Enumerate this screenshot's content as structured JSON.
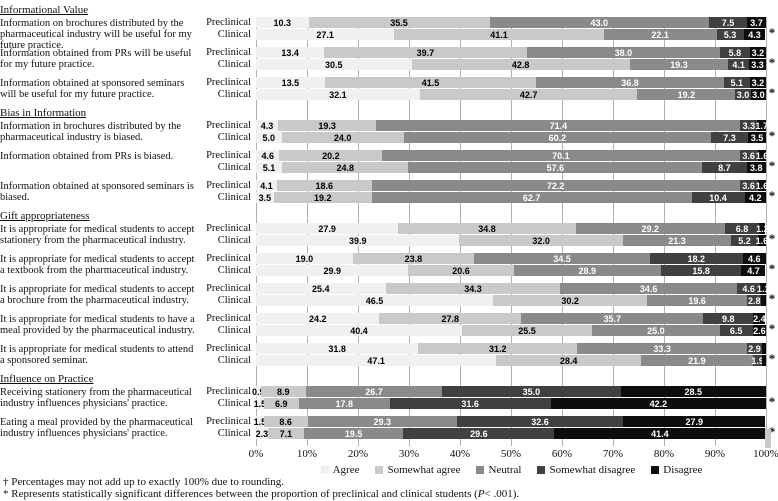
{
  "chart_data": {
    "type": "bar",
    "orientation": "horizontal",
    "stacked": true,
    "unit": "%",
    "xlim": [
      0,
      100
    ],
    "grid": true,
    "legend_position": "bottom",
    "x_ticks": [
      "0%",
      "10%",
      "20%",
      "30%",
      "40%",
      "50%",
      "60%",
      "70%",
      "80%",
      "90%",
      "100%"
    ],
    "series": [
      "Agree",
      "Somewhat agree",
      "Neutral",
      "Somewhat disagree",
      "Disagree"
    ],
    "series_colors": [
      "#f0f0f0",
      "#c9c9c9",
      "#8a8a8a",
      "#404040",
      "#0d0d0d"
    ],
    "series_text_colors": [
      "#000000",
      "#000000",
      "#ffffff",
      "#ffffff",
      "#ffffff"
    ],
    "grid_color": "#b0b0b0",
    "significance_marker": "*",
    "sections": [
      {
        "title": "Informational Value",
        "questions": [
          {
            "text": "Information on brochures distributed by the pharmaceutical industry will be useful for my future practice.",
            "significant": true,
            "rows": [
              {
                "label": "Preclinical",
                "values": [
                  10.3,
                  35.5,
                  43.0,
                  7.5,
                  3.7
                ],
                "labels": [
                  "10.3",
                  "35.5",
                  "43.0",
                  "7.5",
                  "3.7"
                ]
              },
              {
                "label": "Clinical",
                "values": [
                  27.1,
                  41.1,
                  22.1,
                  5.3,
                  4.3
                ],
                "labels": [
                  "27.1",
                  "41.1",
                  "22.1",
                  "5.3",
                  "4.3"
                ]
              }
            ]
          },
          {
            "text": "Information obtained from PRs will be useful for my future practice.",
            "significant": true,
            "rows": [
              {
                "label": "Preclinical",
                "values": [
                  13.4,
                  39.7,
                  38.0,
                  5.8,
                  3.2
                ],
                "labels": [
                  "13.4",
                  "39.7",
                  "38.0",
                  "5.8",
                  "3.2"
                ]
              },
              {
                "label": "Clinical",
                "values": [
                  30.5,
                  42.8,
                  19.3,
                  4.1,
                  3.3
                ],
                "labels": [
                  "30.5",
                  "42.8",
                  "19.3",
                  "4.1",
                  "3.3"
                ]
              }
            ]
          },
          {
            "text": "Information obtained at sponsored seminars will be useful for my future practice.",
            "significant": true,
            "rows": [
              {
                "label": "Preclinical",
                "values": [
                  13.5,
                  41.5,
                  36.8,
                  5.1,
                  3.2
                ],
                "labels": [
                  "13.5",
                  "41.5",
                  "36.8",
                  "5.1",
                  "3.2"
                ]
              },
              {
                "label": "Clinical",
                "values": [
                  32.1,
                  42.7,
                  19.2,
                  3.0,
                  3.0
                ],
                "labels": [
                  "32.1",
                  "42.7",
                  "19.2",
                  "3.0",
                  "3.0"
                ]
              }
            ]
          }
        ]
      },
      {
        "title": "Bias in Information",
        "questions": [
          {
            "text": "Information in brochures distributed by the pharmaceutical industry is biased.",
            "significant": true,
            "rows": [
              {
                "label": "Preclinical",
                "values": [
                  4.3,
                  19.3,
                  71.4,
                  3.3,
                  1.7
                ],
                "labels": [
                  "4.3",
                  "19.3",
                  "71.4",
                  "3.3",
                  "1.7"
                ]
              },
              {
                "label": "Clinical",
                "values": [
                  5.0,
                  24.0,
                  60.2,
                  7.3,
                  3.5
                ],
                "labels": [
                  "5.0",
                  "24.0",
                  "60.2",
                  "7.3",
                  "3.5"
                ]
              }
            ]
          },
          {
            "text": "Information obtained from PRs is biased.",
            "significant": true,
            "rows": [
              {
                "label": "Preclinical",
                "values": [
                  4.6,
                  20.2,
                  70.1,
                  3.6,
                  1.6
                ],
                "labels": [
                  "4.6",
                  "20.2",
                  "70.1",
                  "3.6",
                  "1.6"
                ]
              },
              {
                "label": "Clinical",
                "values": [
                  5.1,
                  24.8,
                  57.6,
                  8.7,
                  3.8
                ],
                "labels": [
                  "5.1",
                  "24.8",
                  "57.6",
                  "8.7",
                  "3.8"
                ]
              }
            ]
          },
          {
            "text": "Information obtained at sponsored seminars is biased.",
            "significant": true,
            "rows": [
              {
                "label": "Preclinical",
                "values": [
                  4.1,
                  18.6,
                  72.2,
                  3.6,
                  1.6
                ],
                "labels": [
                  "4.1",
                  "18.6",
                  "72.2",
                  "3.6",
                  "1.6"
                ]
              },
              {
                "label": "Clinical",
                "values": [
                  3.5,
                  19.2,
                  62.7,
                  10.4,
                  4.2
                ],
                "labels": [
                  "3.5",
                  "19.2",
                  "62.7",
                  "10.4",
                  "4.2"
                ]
              }
            ]
          }
        ]
      },
      {
        "title": "Gift appropriateness",
        "questions": [
          {
            "text": "It is appropriate for medical students to accept stationery from the pharmaceutical industry.",
            "significant": true,
            "rows": [
              {
                "label": "Preclinical",
                "values": [
                  27.9,
                  34.8,
                  29.2,
                  6.8,
                  1.2
                ],
                "labels": [
                  "27.9",
                  "34.8",
                  "29.2",
                  "6.8",
                  "1.2"
                ]
              },
              {
                "label": "Clinical",
                "values": [
                  39.9,
                  32.0,
                  21.3,
                  5.2,
                  1.6
                ],
                "labels": [
                  "39.9",
                  "32.0",
                  "21.3",
                  "5.2",
                  "1.6"
                ]
              }
            ]
          },
          {
            "text": "It is appropriate for medical students to accept a textbook from the pharmaceutical industry.",
            "significant": true,
            "rows": [
              {
                "label": "Preclinical",
                "values": [
                  19.0,
                  23.8,
                  34.5,
                  18.2,
                  4.6
                ],
                "labels": [
                  "19.0",
                  "23.8",
                  "34.5",
                  "18.2",
                  "4.6"
                ]
              },
              {
                "label": "Clinical",
                "values": [
                  29.9,
                  20.6,
                  28.9,
                  15.8,
                  4.7
                ],
                "labels": [
                  "29.9",
                  "20.6",
                  "28.9",
                  "15.8",
                  "4.7"
                ]
              }
            ]
          },
          {
            "text": "It is appropriate for medical students to accept a brochure from the pharmaceutical industry.",
            "significant": true,
            "rows": [
              {
                "label": "Preclinical",
                "values": [
                  25.4,
                  34.3,
                  34.6,
                  4.6,
                  1.1
                ],
                "labels": [
                  "25.4",
                  "34.3",
                  "34.6",
                  "4.6",
                  "1.1"
                ]
              },
              {
                "label": "Clinical",
                "values": [
                  46.5,
                  30.2,
                  19.6,
                  2.8,
                  0.9
                ],
                "labels": [
                  "46.5",
                  "30.2",
                  "19.6",
                  "2.8",
                  ""
                ]
              }
            ]
          },
          {
            "text": "It is appropriate for medical students to have a meal provided by the pharmaceutical industry.",
            "significant": true,
            "rows": [
              {
                "label": "Preclinical",
                "values": [
                  24.2,
                  27.8,
                  35.7,
                  9.8,
                  2.4
                ],
                "labels": [
                  "24.2",
                  "27.8",
                  "35.7",
                  "9.8",
                  "2.4"
                ]
              },
              {
                "label": "Clinical",
                "values": [
                  40.4,
                  25.5,
                  25.0,
                  6.5,
                  2.6
                ],
                "labels": [
                  "40.4",
                  "25.5",
                  "25.0",
                  "6.5",
                  "2.6"
                ]
              }
            ]
          },
          {
            "text": "It is appropriate for medical students to attend a sponsored seminar.",
            "significant": true,
            "rows": [
              {
                "label": "Preclinical",
                "values": [
                  31.8,
                  31.2,
                  33.3,
                  2.9,
                  0.8
                ],
                "labels": [
                  "31.8",
                  "31.2",
                  "33.3",
                  "2.9",
                  ""
                ]
              },
              {
                "label": "Clinical",
                "values": [
                  47.1,
                  28.4,
                  21.9,
                  1.9,
                  0.7
                ],
                "labels": [
                  "47.1",
                  "28.4",
                  "21.9",
                  "1.9",
                  ""
                ]
              }
            ]
          }
        ]
      },
      {
        "title": "Influence on Practice",
        "questions": [
          {
            "text": "Receiving stationery from the pharmaceutical industry influences physicians' practice.",
            "significant": true,
            "rows": [
              {
                "label": "Preclinical",
                "values": [
                  0.9,
                  8.9,
                  26.7,
                  35.0,
                  28.5
                ],
                "labels": [
                  "0.9",
                  "8.9",
                  "26.7",
                  "35.0",
                  "28.5"
                ]
              },
              {
                "label": "Clinical",
                "values": [
                  1.5,
                  6.9,
                  17.8,
                  31.6,
                  42.2
                ],
                "labels": [
                  "1.5",
                  "6.9",
                  "17.8",
                  "31.6",
                  "42.2"
                ]
              }
            ]
          },
          {
            "text": "Eating a meal provided by the pharmaceutical industry influences physicians' practice.",
            "significant": true,
            "rows": [
              {
                "label": "Preclinical",
                "values": [
                  1.5,
                  8.6,
                  29.3,
                  32.6,
                  27.9
                ],
                "labels": [
                  "1.5",
                  "8.6",
                  "29.3",
                  "32.6",
                  "27.9"
                ]
              },
              {
                "label": "Clinical",
                "values": [
                  2.3,
                  7.1,
                  19.5,
                  29.6,
                  41.4
                ],
                "labels": [
                  "2.3",
                  "7.1",
                  "19.5",
                  "29.6",
                  "41.4"
                ]
              }
            ]
          }
        ]
      }
    ]
  },
  "footnotes": {
    "rounding": "† Percentages may not add up to exactly 100% due to rounding.",
    "significance_prefix": "* Represents statistically significant differences between the proportion of preclinical and clinical students (",
    "significance_p": "P",
    "significance_suffix": "< .001)."
  }
}
